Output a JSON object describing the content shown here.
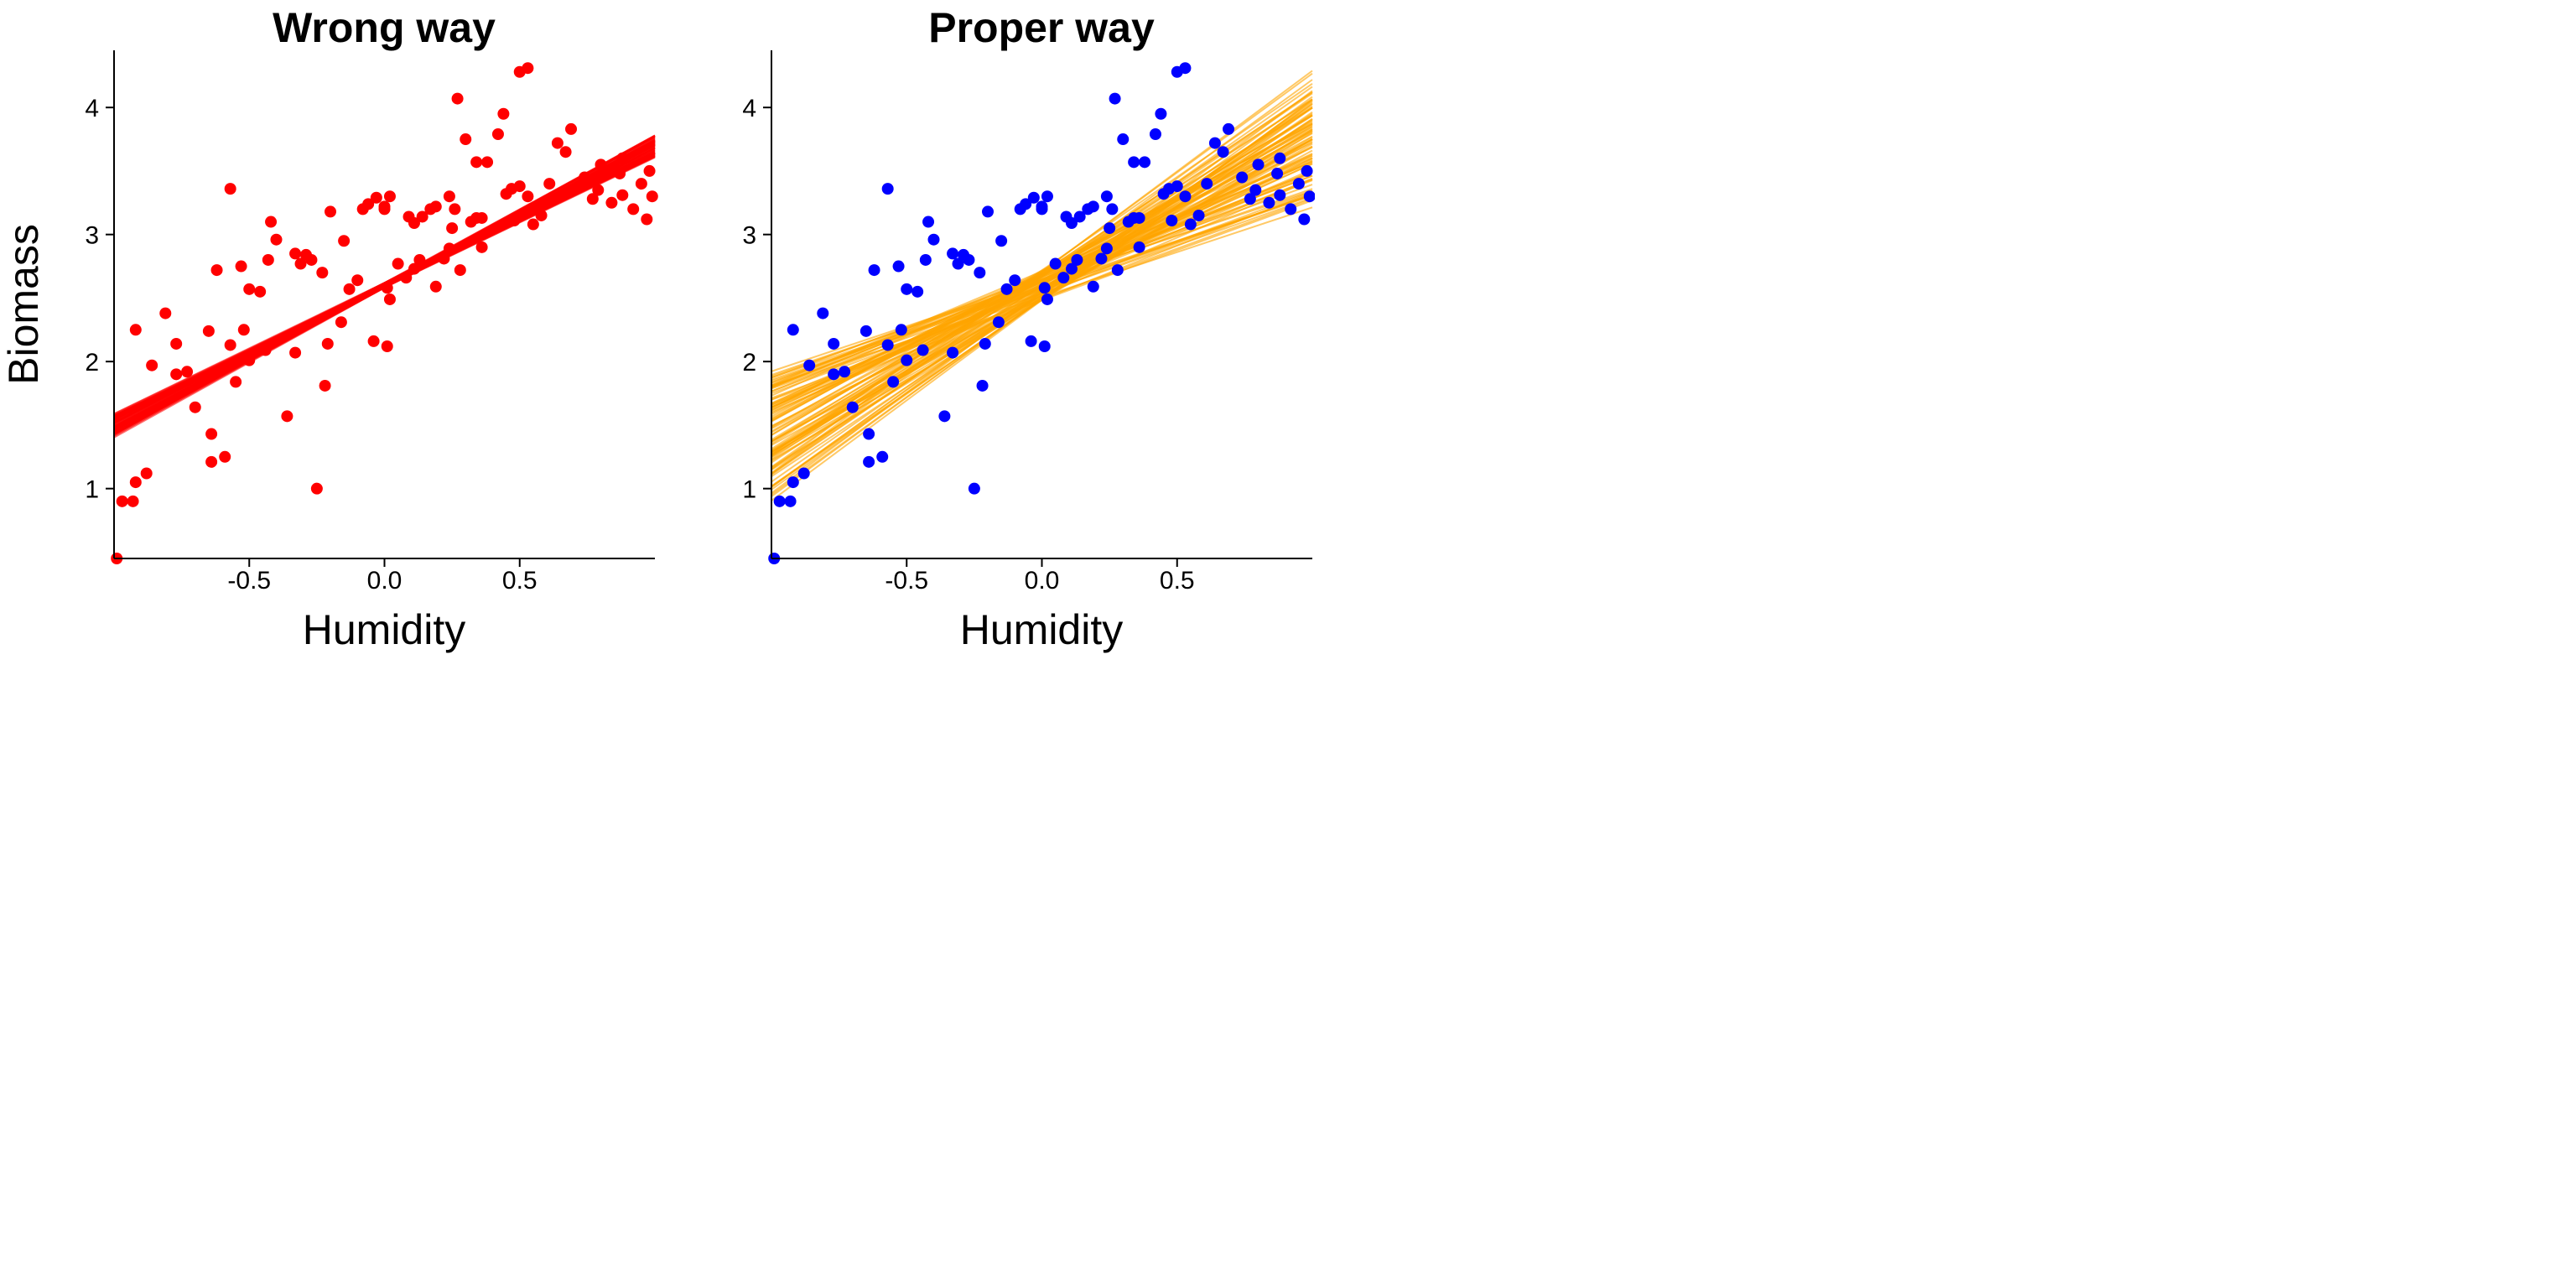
{
  "chart_data": [
    {
      "type": "scatter",
      "title": "Wrong way",
      "xlabel": "Humidity",
      "ylabel": "Biomass",
      "xlim": [
        -1.0,
        1.0
      ],
      "ylim": [
        0.45,
        4.45
      ],
      "xticks": [
        -0.5,
        0.0,
        0.5
      ],
      "xtick_labels": [
        "-0.5",
        "0.0",
        "0.5"
      ],
      "yticks": [
        1,
        2,
        3,
        4
      ],
      "ytick_labels": [
        "1",
        "2",
        "3",
        "4"
      ],
      "grid": false,
      "point_color": "#ff0000",
      "line_color": "#ff0000",
      "points": {
        "x": [
          -0.99,
          -0.97,
          -0.93,
          -0.92,
          -0.92,
          -0.88,
          -0.86,
          -0.81,
          -0.77,
          -0.77,
          -0.73,
          -0.7,
          -0.65,
          -0.64,
          -0.64,
          -0.62,
          -0.59,
          -0.57,
          -0.57,
          -0.55,
          -0.53,
          -0.52,
          -0.5,
          -0.5,
          -0.46,
          -0.44,
          -0.43,
          -0.42,
          -0.4,
          -0.36,
          -0.33,
          -0.33,
          -0.31,
          -0.29,
          -0.27,
          -0.25,
          -0.23,
          -0.22,
          -0.21,
          -0.2,
          -0.16,
          -0.15,
          -0.13,
          -0.1,
          -0.08,
          -0.06,
          -0.04,
          -0.03,
          0.0,
          0.0,
          0.01,
          0.01,
          0.02,
          0.02,
          0.05,
          0.08,
          0.09,
          0.11,
          0.11,
          0.13,
          0.14,
          0.17,
          0.19,
          0.19,
          0.22,
          0.24,
          0.24,
          0.25,
          0.26,
          0.27,
          0.28,
          0.3,
          0.32,
          0.34,
          0.34,
          0.36,
          0.36,
          0.38,
          0.42,
          0.44,
          0.45,
          0.47,
          0.48,
          0.5,
          0.5,
          0.53,
          0.53,
          0.55,
          0.58,
          0.61,
          0.64,
          0.67,
          0.69,
          0.74,
          0.77,
          0.79,
          0.8,
          0.84,
          0.87,
          0.88,
          0.88,
          0.92,
          0.95,
          0.97,
          0.98,
          0.99
        ],
        "y": [
          0.45,
          0.9,
          0.9,
          1.05,
          2.25,
          1.12,
          1.97,
          2.38,
          1.9,
          2.14,
          1.92,
          1.64,
          2.24,
          1.43,
          1.21,
          2.72,
          1.25,
          2.13,
          3.36,
          1.84,
          2.75,
          2.25,
          2.01,
          2.57,
          2.55,
          2.09,
          2.8,
          3.1,
          2.96,
          1.57,
          2.07,
          2.85,
          2.77,
          2.84,
          2.8,
          1.0,
          2.7,
          1.81,
          2.14,
          3.18,
          2.31,
          2.95,
          2.57,
          2.64,
          3.2,
          3.24,
          2.16,
          3.29,
          3.2,
          3.22,
          2.12,
          2.58,
          3.3,
          2.49,
          2.77,
          2.66,
          3.14,
          3.09,
          2.73,
          2.8,
          3.14,
          3.2,
          3.22,
          2.59,
          2.81,
          3.3,
          2.89,
          3.05,
          3.2,
          4.07,
          2.72,
          3.75,
          3.1,
          3.13,
          3.57,
          3.13,
          2.9,
          3.57,
          3.79,
          3.95,
          3.32,
          3.36,
          3.11,
          3.38,
          4.28,
          4.31,
          3.3,
          3.08,
          3.15,
          3.4,
          3.72,
          3.65,
          3.83,
          3.45,
          3.28,
          3.35,
          3.55,
          3.25,
          3.48,
          3.31,
          3.6,
          3.2,
          3.4,
          3.12,
          3.5,
          3.3
        ]
      },
      "lines": {
        "intercept_range": [
          2.58,
          2.62
        ],
        "slope_range": [
          1.02,
          1.18
        ]
      }
    },
    {
      "type": "scatter",
      "title": "Proper way",
      "xlabel": "Humidity",
      "ylabel": "",
      "xlim": [
        -1.0,
        1.0
      ],
      "ylim": [
        0.45,
        4.45
      ],
      "xticks": [
        -0.5,
        0.0,
        0.5
      ],
      "xtick_labels": [
        "-0.5",
        "0.0",
        "0.5"
      ],
      "yticks": [
        1,
        2,
        3,
        4
      ],
      "ytick_labels": [
        "1",
        "2",
        "3",
        "4"
      ],
      "grid": false,
      "point_color": "#0000ff",
      "line_color": "#ffa500",
      "points": {
        "x": [
          -0.99,
          -0.97,
          -0.93,
          -0.92,
          -0.92,
          -0.88,
          -0.86,
          -0.81,
          -0.77,
          -0.77,
          -0.73,
          -0.7,
          -0.65,
          -0.64,
          -0.64,
          -0.62,
          -0.59,
          -0.57,
          -0.57,
          -0.55,
          -0.53,
          -0.52,
          -0.5,
          -0.5,
          -0.46,
          -0.44,
          -0.43,
          -0.42,
          -0.4,
          -0.36,
          -0.33,
          -0.33,
          -0.31,
          -0.29,
          -0.27,
          -0.25,
          -0.23,
          -0.22,
          -0.21,
          -0.2,
          -0.16,
          -0.15,
          -0.13,
          -0.1,
          -0.08,
          -0.06,
          -0.04,
          -0.03,
          0.0,
          0.0,
          0.01,
          0.01,
          0.02,
          0.02,
          0.05,
          0.08,
          0.09,
          0.11,
          0.11,
          0.13,
          0.14,
          0.17,
          0.19,
          0.19,
          0.22,
          0.24,
          0.24,
          0.25,
          0.26,
          0.27,
          0.28,
          0.3,
          0.32,
          0.34,
          0.34,
          0.36,
          0.36,
          0.38,
          0.42,
          0.44,
          0.45,
          0.47,
          0.48,
          0.5,
          0.5,
          0.53,
          0.53,
          0.55,
          0.58,
          0.61,
          0.64,
          0.67,
          0.69,
          0.74,
          0.77,
          0.79,
          0.8,
          0.84,
          0.87,
          0.88,
          0.88,
          0.92,
          0.95,
          0.97,
          0.98,
          0.99
        ],
        "y": [
          0.45,
          0.9,
          0.9,
          1.05,
          2.25,
          1.12,
          1.97,
          2.38,
          1.9,
          2.14,
          1.92,
          1.64,
          2.24,
          1.43,
          1.21,
          2.72,
          1.25,
          2.13,
          3.36,
          1.84,
          2.75,
          2.25,
          2.01,
          2.57,
          2.55,
          2.09,
          2.8,
          3.1,
          2.96,
          1.57,
          2.07,
          2.85,
          2.77,
          2.84,
          2.8,
          1.0,
          2.7,
          1.81,
          2.14,
          3.18,
          2.31,
          2.95,
          2.57,
          2.64,
          3.2,
          3.24,
          2.16,
          3.29,
          3.2,
          3.22,
          2.12,
          2.58,
          3.3,
          2.49,
          2.77,
          2.66,
          3.14,
          3.09,
          2.73,
          2.8,
          3.14,
          3.2,
          3.22,
          2.59,
          2.81,
          3.3,
          2.89,
          3.05,
          3.2,
          4.07,
          2.72,
          3.75,
          3.1,
          3.13,
          3.57,
          3.13,
          2.9,
          3.57,
          3.79,
          3.95,
          3.32,
          3.36,
          3.11,
          3.38,
          4.28,
          4.31,
          3.3,
          3.08,
          3.15,
          3.4,
          3.72,
          3.65,
          3.83,
          3.45,
          3.28,
          3.35,
          3.55,
          3.25,
          3.48,
          3.31,
          3.6,
          3.2,
          3.4,
          3.12,
          3.5,
          3.3
        ]
      },
      "lines": {
        "intercept_range": [
          2.48,
          2.72
        ],
        "slope_range": [
          0.7,
          1.6
        ]
      }
    }
  ]
}
